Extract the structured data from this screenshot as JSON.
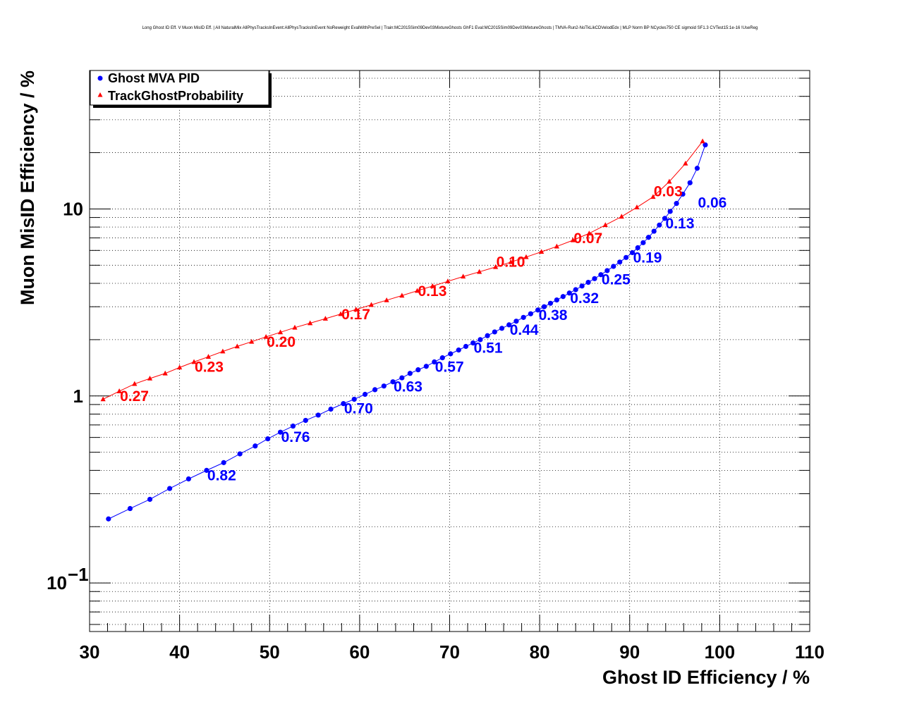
{
  "chart_data": {
    "type": "line",
    "title": "Long Ghost ID Eff. V Muon MisID Eff. | All NaturalMix AllPhysTracksInEvent:AllPhysTracksInEvent NoReweight EvalWithPreSel | Train:MC2015Sim09Dev03MixtureGhosts GhF1 Eval:MC2015Sim09Dev03MixtureGhosts | TMVA-Run2-NoTkLikCDVelodEdx | MLP Norm BP NCycles750 CE sigmoid SF1.3 CVTest15:1e-16 !UseReg",
    "xlabel": "Ghost ID Efficiency / %",
    "ylabel": "Muon MisID Efficiency / %",
    "xlim": [
      30,
      110
    ],
    "ylim": [
      0.055,
      55
    ],
    "yscale": "log",
    "grid": true,
    "legend_position": "top-left",
    "x_ticks": [
      "30",
      "40",
      "50",
      "60",
      "70",
      "80",
      "90",
      "100",
      "110"
    ],
    "y_ticks": [
      {
        "value": 0.1,
        "base": "10",
        "exponent": "−1"
      },
      {
        "value": 1,
        "base": "1",
        "exponent": ""
      },
      {
        "value": 10,
        "base": "10",
        "exponent": ""
      }
    ],
    "series": [
      {
        "name": "Ghost MVA PID",
        "color": "#0000ff",
        "marker": "circle",
        "x": [
          32.1,
          34.5,
          36.7,
          38.9,
          41.0,
          43.0,
          44.9,
          46.7,
          48.4,
          49.8,
          51.2,
          52.6,
          54.0,
          55.4,
          56.8,
          58.2,
          59.4,
          60.6,
          61.7,
          62.7,
          63.7,
          64.7,
          65.6,
          66.5,
          67.4,
          68.3,
          69.2,
          70.1,
          71.0,
          71.8,
          72.6,
          73.4,
          74.2,
          75.0,
          75.8,
          76.6,
          77.4,
          78.2,
          79.0,
          79.8,
          80.5,
          81.2,
          81.9,
          82.6,
          83.3,
          84.0,
          84.7,
          85.4,
          86.1,
          86.8,
          87.5,
          88.2,
          88.9,
          89.6,
          90.3,
          90.9,
          91.5,
          92.1,
          92.7,
          93.3,
          93.9,
          94.5,
          95.2,
          95.9,
          96.7,
          97.5,
          98.4
        ],
        "y": [
          0.22,
          0.25,
          0.28,
          0.32,
          0.36,
          0.4,
          0.44,
          0.49,
          0.54,
          0.59,
          0.64,
          0.69,
          0.74,
          0.79,
          0.85,
          0.91,
          0.96,
          1.02,
          1.08,
          1.13,
          1.19,
          1.25,
          1.32,
          1.38,
          1.44,
          1.52,
          1.6,
          1.68,
          1.76,
          1.84,
          1.92,
          2.0,
          2.1,
          2.2,
          2.3,
          2.4,
          2.51,
          2.63,
          2.75,
          2.88,
          3.0,
          3.13,
          3.26,
          3.4,
          3.55,
          3.7,
          3.87,
          4.05,
          4.24,
          4.45,
          4.68,
          4.93,
          5.2,
          5.5,
          5.84,
          6.2,
          6.6,
          7.05,
          7.6,
          8.2,
          8.9,
          9.7,
          10.7,
          12.0,
          13.8,
          16.5,
          22.0
        ],
        "labels": [
          {
            "x": 43.0,
            "y": 0.4,
            "text": "0.82"
          },
          {
            "x": 51.2,
            "y": 0.64,
            "text": "0.76"
          },
          {
            "x": 58.2,
            "y": 0.91,
            "text": "0.70"
          },
          {
            "x": 63.7,
            "y": 1.19,
            "text": "0.63"
          },
          {
            "x": 68.3,
            "y": 1.52,
            "text": "0.57"
          },
          {
            "x": 72.6,
            "y": 1.92,
            "text": "0.51"
          },
          {
            "x": 76.6,
            "y": 2.4,
            "text": "0.44"
          },
          {
            "x": 79.8,
            "y": 2.88,
            "text": "0.38"
          },
          {
            "x": 83.3,
            "y": 3.55,
            "text": "0.32"
          },
          {
            "x": 86.8,
            "y": 4.45,
            "text": "0.25"
          },
          {
            "x": 90.3,
            "y": 5.84,
            "text": "0.19"
          },
          {
            "x": 93.9,
            "y": 8.9,
            "text": "0.13"
          },
          {
            "x": 97.5,
            "y": 11.5,
            "text": "0.06"
          }
        ]
      },
      {
        "name": "TrackGhostProbability",
        "color": "#ff0000",
        "marker": "triangle",
        "x": [
          31.5,
          33.3,
          35.0,
          36.7,
          38.4,
          40.0,
          41.6,
          43.2,
          44.8,
          46.4,
          48.0,
          49.6,
          51.2,
          52.8,
          54.5,
          56.2,
          57.9,
          59.6,
          61.3,
          63.0,
          64.7,
          66.4,
          68.1,
          69.8,
          71.5,
          73.3,
          75.1,
          76.8,
          78.5,
          80.2,
          81.9,
          83.7,
          85.5,
          87.3,
          89.1,
          90.8,
          92.6,
          94.4,
          96.2,
          98.1
        ],
        "y": [
          0.96,
          1.06,
          1.16,
          1.24,
          1.32,
          1.42,
          1.52,
          1.62,
          1.73,
          1.84,
          1.95,
          2.07,
          2.19,
          2.32,
          2.45,
          2.59,
          2.74,
          2.9,
          3.07,
          3.25,
          3.44,
          3.65,
          3.87,
          4.1,
          4.35,
          4.61,
          4.89,
          5.2,
          5.53,
          5.9,
          6.3,
          6.8,
          7.4,
          8.2,
          9.1,
          10.2,
          11.6,
          14.0,
          17.5,
          23.0
        ],
        "labels": [
          {
            "x": 33.3,
            "y": 1.06,
            "text": "0.27"
          },
          {
            "x": 41.6,
            "y": 1.52,
            "text": "0.23"
          },
          {
            "x": 49.6,
            "y": 2.07,
            "text": "0.20"
          },
          {
            "x": 57.9,
            "y": 2.9,
            "text": "0.17"
          },
          {
            "x": 66.4,
            "y": 3.87,
            "text": "0.13"
          },
          {
            "x": 75.1,
            "y": 5.53,
            "text": "0.10"
          },
          {
            "x": 83.7,
            "y": 7.4,
            "text": "0.07"
          },
          {
            "x": 92.6,
            "y": 13.2,
            "text": "0.03"
          }
        ]
      }
    ]
  }
}
